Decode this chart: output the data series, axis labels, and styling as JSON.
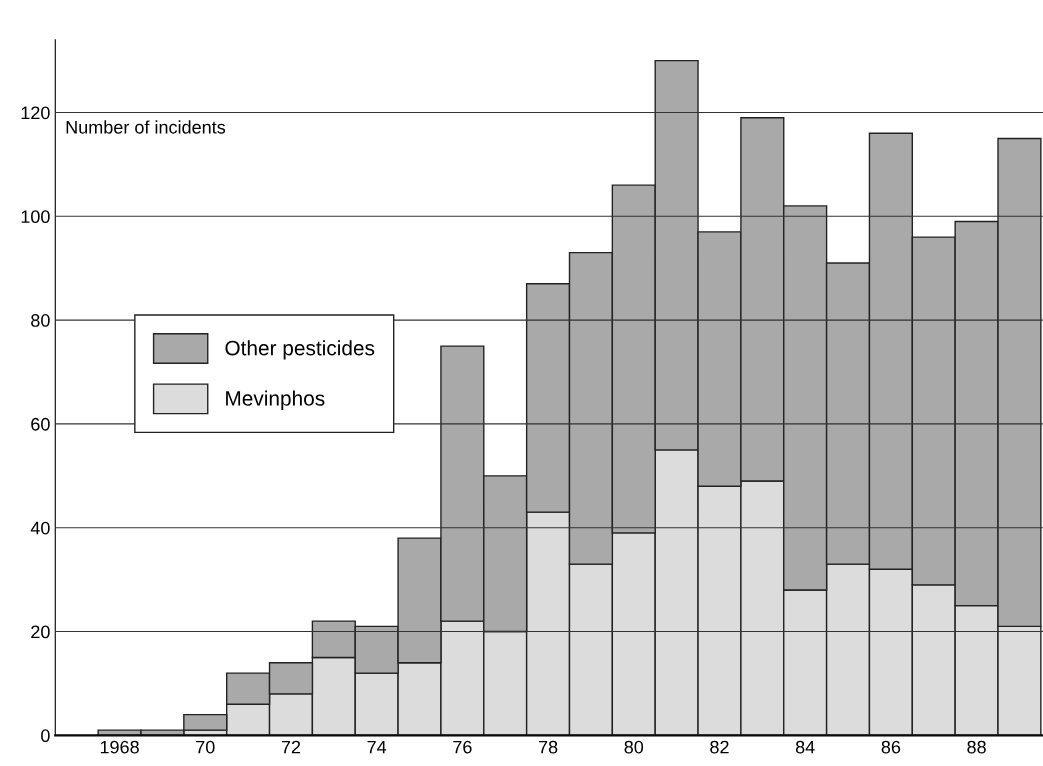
{
  "chart_data": {
    "type": "bar",
    "stacked": true,
    "ylabel": "Number of incidents",
    "categories": [
      "1968",
      null,
      "70",
      null,
      "72",
      null,
      "74",
      null,
      "76",
      null,
      "78",
      null,
      "80",
      null,
      "82",
      null,
      "84",
      null,
      "86",
      null,
      "88",
      null
    ],
    "series": [
      {
        "name": "Mevinphos",
        "color": "#dcdcdc",
        "values": [
          0,
          0,
          1,
          6,
          8,
          15,
          12,
          14,
          22,
          20,
          43,
          33,
          39,
          55,
          48,
          49,
          28,
          33,
          32,
          29,
          25,
          21
        ]
      },
      {
        "name": "Other pesticides",
        "color": "#a9a9a9",
        "values": [
          1,
          1,
          3,
          6,
          6,
          7,
          9,
          24,
          53,
          30,
          44,
          60,
          67,
          75,
          49,
          70,
          74,
          58,
          84,
          67,
          74,
          94
        ]
      }
    ],
    "ylim": [
      0,
      134
    ],
    "yticks": [
      0,
      20,
      40,
      60,
      80,
      100,
      120
    ],
    "grid": "y",
    "legend": "center left"
  }
}
